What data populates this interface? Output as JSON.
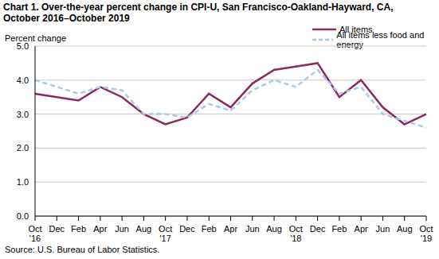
{
  "chart_data": {
    "type": "line",
    "title": "Chart 1. Over-the-year percent change in CPI-U, San Francisco-Oakland-Hayward, CA, October 2016–October 2019",
    "y_label": "Percent change",
    "source": "Source: U.S. Bureau of Labor Statistics.",
    "categories": [
      "Oct '16",
      "Dec",
      "Feb",
      "Apr",
      "Jun",
      "Aug",
      "Oct '17",
      "Dec",
      "Feb",
      "Apr",
      "Jun",
      "Aug",
      "Oct '18",
      "Dec",
      "Feb",
      "Apr",
      "Jun",
      "Aug",
      "Oct '19"
    ],
    "series": [
      {
        "name": "All items",
        "color": "#8b2a5e",
        "line_style": "solid",
        "marker": "none",
        "values": [
          3.6,
          3.5,
          3.4,
          3.8,
          3.5,
          3.0,
          2.7,
          2.9,
          3.6,
          3.2,
          3.9,
          4.3,
          4.4,
          4.5,
          3.5,
          4.0,
          3.2,
          2.7,
          3.0
        ]
      },
      {
        "name": "All items less food and energy",
        "color": "#a6cbe8",
        "line_style": "dashed",
        "marker": "none",
        "values": [
          4.0,
          3.8,
          3.6,
          3.8,
          3.7,
          3.0,
          3.0,
          2.9,
          3.3,
          3.1,
          3.7,
          4.0,
          3.8,
          4.3,
          3.6,
          3.8,
          3.0,
          2.8,
          2.6
        ]
      }
    ],
    "ylim": [
      0,
      5
    ],
    "yticks": [
      {
        "value": 0,
        "label": "0.0"
      },
      {
        "value": 1,
        "label": "1.0"
      },
      {
        "value": 2,
        "label": "2.0"
      },
      {
        "value": 3,
        "label": "3.0"
      },
      {
        "value": 4,
        "label": "4.0"
      },
      {
        "value": 5,
        "label": "5.0"
      }
    ],
    "grid": true,
    "legend": "upper right"
  }
}
